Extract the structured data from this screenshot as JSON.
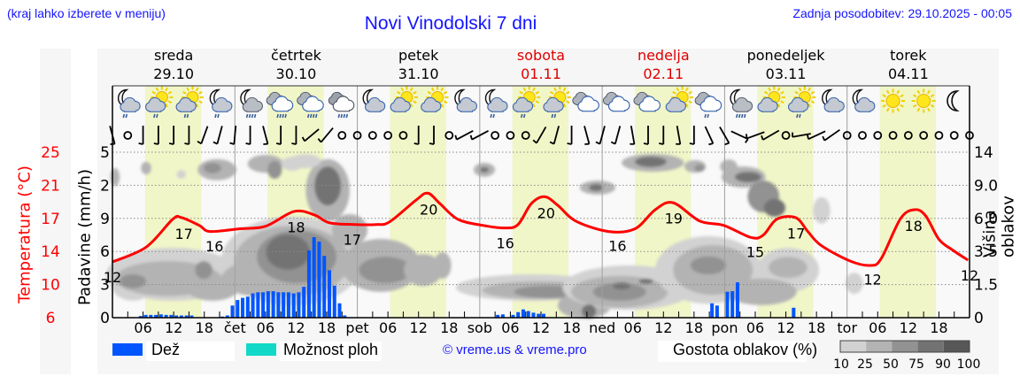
{
  "header": {
    "location_hint": "(kraj lahko izberete v meniju)",
    "title": "Novi Vinodolski 7 dni",
    "updated": "Zadnja posodobitev: 29.10.2025 - 00:05"
  },
  "days": [
    {
      "name": "sreda",
      "date": "29.10",
      "weekend": false
    },
    {
      "name": "četrtek",
      "date": "30.10",
      "weekend": false
    },
    {
      "name": "petek",
      "date": "31.10",
      "weekend": false
    },
    {
      "name": "sobota",
      "date": "01.11",
      "weekend": true
    },
    {
      "name": "nedelja",
      "date": "02.11",
      "weekend": true
    },
    {
      "name": "ponedeljek",
      "date": "03.11",
      "weekend": false
    },
    {
      "name": "torek",
      "date": "04.11",
      "weekend": false
    }
  ],
  "axes": {
    "temperature_title": "Temperatura (°C)",
    "rain_title": "Padavine (mm/h)",
    "cloud_height_title": "Višina oblakov (km)",
    "temperature_ticks": [
      "6",
      "10",
      "14",
      "17",
      "21",
      "25"
    ],
    "rain_ticks": [
      "0",
      "3",
      "6",
      "9",
      "2",
      "5"
    ],
    "cloud_height_ticks": [
      "0",
      "1.5",
      "3.5",
      "6.0",
      "9.0",
      "14"
    ],
    "hour_labels": [
      "06",
      "12",
      "18"
    ],
    "day_abbrev": [
      "",
      "čet",
      "pet",
      "sob",
      "ned",
      "pon",
      "tor"
    ]
  },
  "legend": {
    "rain_label": "Dež",
    "showers_label": "Možnost ploh",
    "copyright": "© vreme.us & vreme.pro",
    "cloud_density_label": "Gostota oblakov (%)",
    "cloud_density_scale": [
      "10",
      "25",
      "50",
      "75",
      "90",
      "100"
    ],
    "cloud_density_colors": [
      "#d2d2d2",
      "#b3b3b3",
      "#929292",
      "#737373",
      "#575757"
    ]
  },
  "colors": {
    "link_blue": "#1414ff",
    "temperature": "#ff0000",
    "rain": "#0055ff",
    "showers": "#12d8c8",
    "weekend": "#e00000",
    "daylight": "#f1f6c8"
  },
  "chart_data": {
    "type": "line",
    "title": "Novi Vinodolski 7 dni",
    "xlabel": "",
    "ylabel": "Temperatura (°C) / Padavine (mm/h) / Višina oblakov (km)",
    "x_range_hours": [
      0,
      168
    ],
    "ylim_temperature": [
      6,
      25
    ],
    "daylight_hours": [
      6.4,
      17.4
    ],
    "grid": true,
    "temperature_series": {
      "name": "Temperatura (°C)",
      "points": [
        [
          0,
          12.4
        ],
        [
          6.6,
          14.1
        ],
        [
          11.8,
          17.3
        ],
        [
          13.5,
          17.5
        ],
        [
          17,
          16.6
        ],
        [
          19.1,
          15.9
        ],
        [
          24.8,
          16.2
        ],
        [
          30,
          16.5
        ],
        [
          35.6,
          18.2
        ],
        [
          39.6,
          17.8
        ],
        [
          42.5,
          16.9
        ],
        [
          47.4,
          16.7
        ],
        [
          51.7,
          16.7
        ],
        [
          54.3,
          17.0
        ],
        [
          59.5,
          19.5
        ],
        [
          61.8,
          20.3
        ],
        [
          64.2,
          19.1
        ],
        [
          67.7,
          17.3
        ],
        [
          72.6,
          16.6
        ],
        [
          76.9,
          16.3
        ],
        [
          79.5,
          16.7
        ],
        [
          82.1,
          19.1
        ],
        [
          84.7,
          19.9
        ],
        [
          87.3,
          18.9
        ],
        [
          90.8,
          17.1
        ],
        [
          97.2,
          15.9
        ],
        [
          102.4,
          16.2
        ],
        [
          106.4,
          18.4
        ],
        [
          109.9,
          19.2
        ],
        [
          115.1,
          17.1
        ],
        [
          119.8,
          16.6
        ],
        [
          125.2,
          15.2
        ],
        [
          127.6,
          15.5
        ],
        [
          130.2,
          17.3
        ],
        [
          133.9,
          17.5
        ],
        [
          136.3,
          15.9
        ],
        [
          138.9,
          14.3
        ],
        [
          144.6,
          12.5
        ],
        [
          148.6,
          12.0
        ],
        [
          150.7,
          12.8
        ],
        [
          154.5,
          17.4
        ],
        [
          157.3,
          18.4
        ],
        [
          159.4,
          17.7
        ],
        [
          162,
          15.0
        ],
        [
          164.6,
          13.8
        ],
        [
          167.7,
          12.6
        ]
      ]
    },
    "temperature_labels": [
      [
        0,
        "12"
      ],
      [
        14,
        "17"
      ],
      [
        20,
        "16"
      ],
      [
        36,
        "18"
      ],
      [
        47,
        "17"
      ],
      [
        62,
        "20"
      ],
      [
        77,
        "16"
      ],
      [
        85,
        "20"
      ],
      [
        99,
        "16"
      ],
      [
        110,
        "19"
      ],
      [
        126,
        "15"
      ],
      [
        134,
        "17"
      ],
      [
        149,
        "12"
      ],
      [
        157,
        "18"
      ],
      [
        168,
        "12"
      ]
    ],
    "rain_series": {
      "name": "Dež (mm/h)",
      "hourly": [
        [
          5,
          0.15
        ],
        [
          6,
          0.25
        ],
        [
          7,
          0.25
        ],
        [
          8,
          0.25
        ],
        [
          9,
          0.3
        ],
        [
          10,
          0.25
        ],
        [
          11,
          0.25
        ],
        [
          12,
          0.2
        ],
        [
          13,
          0.2
        ],
        [
          14,
          0.2
        ],
        [
          15,
          0.2
        ],
        [
          21,
          0.1
        ],
        [
          22,
          0.2
        ],
        [
          23,
          1.1
        ],
        [
          24,
          1.6
        ],
        [
          25,
          1.8
        ],
        [
          26,
          1.9
        ],
        [
          27,
          2.2
        ],
        [
          28,
          2.3
        ],
        [
          29,
          2.3
        ],
        [
          30,
          2.4
        ],
        [
          31,
          2.4
        ],
        [
          32,
          2.3
        ],
        [
          33,
          2.3
        ],
        [
          34,
          2.3
        ],
        [
          35,
          2.2
        ],
        [
          36,
          2.3
        ],
        [
          37,
          2.8
        ],
        [
          38,
          6.1
        ],
        [
          39,
          7.3
        ],
        [
          40,
          6.9
        ],
        [
          41,
          5.6
        ],
        [
          42,
          4.3
        ],
        [
          43,
          2.9
        ],
        [
          44,
          1.3
        ],
        [
          45,
          0.2
        ],
        [
          75,
          0.25
        ],
        [
          76,
          0.3
        ],
        [
          78,
          0.25
        ],
        [
          79,
          0.5
        ],
        [
          80,
          0.75
        ],
        [
          81,
          0.6
        ],
        [
          82,
          0.45
        ],
        [
          83,
          0.35
        ],
        [
          84,
          0.35
        ],
        [
          117,
          1.3
        ],
        [
          118,
          1.1
        ],
        [
          120,
          2.35
        ],
        [
          121,
          2.4
        ],
        [
          122,
          3.2
        ],
        [
          133,
          0.9
        ]
      ]
    },
    "showers_series": {
      "name": "Možnost ploh",
      "hourly": []
    },
    "weather_icons": [
      "night-cloud-rain-light",
      "sun-cloud-rain-light",
      "sun-cloud-rain-light",
      "night-cloud-rain-light",
      "night-cloud-rain-heavy",
      "cloud-rain-heavy",
      "cloud-rain-heavy",
      "overcast-rain-heavy",
      "night-cloud",
      "sun-cloud",
      "sun-cloud",
      "night-cloud",
      "night-cloud-rain-light",
      "sun-cloud-rain-light",
      "sun-cloud-rain-light",
      "cloudy",
      "cloudy",
      "cloudy",
      "sun-cloud",
      "cloud-rain-light",
      "night-cloud-rain-heavy",
      "sun-cloud",
      "sun-cloud-rain-light",
      "night-cloud",
      "night-cloud",
      "sun",
      "sun",
      "moon"
    ],
    "wind_every_3h": [
      -15,
      "calm",
      0,
      0,
      0,
      0,
      20,
      15,
      5,
      0,
      -15,
      0,
      0,
      50,
      40,
      "calm",
      "calm",
      "calm",
      "calm",
      "calm",
      0,
      0,
      "calm",
      62,
      62,
      "calm",
      "calm",
      "calm",
      30,
      15,
      0,
      -15,
      15,
      15,
      -10,
      0,
      0,
      -10,
      0,
      -25,
      -30,
      -65,
      70,
      60,
      "calm",
      80,
      65,
      55,
      "calm",
      "calm",
      "calm",
      "calm",
      "calm",
      "calm",
      "calm",
      "calm",
      "calm"
    ],
    "cloud_density_blobs": [
      [
        11.8,
        1.31,
        13.0,
        0.8,
        1
      ],
      [
        4.0,
        1.04,
        4.3,
        0.53,
        1
      ],
      [
        10.9,
        1.18,
        10.4,
        0.53,
        2
      ],
      [
        19.6,
        0.91,
        5.2,
        0.4,
        2
      ],
      [
        4.0,
        1.1,
        2.6,
        0.21,
        3
      ],
      [
        17.9,
        1.44,
        1.7,
        0.27,
        3
      ],
      [
        6.6,
        4.52,
        1.0,
        0.19,
        2
      ],
      [
        20.5,
        4.47,
        3.8,
        0.32,
        2
      ],
      [
        19.6,
        4.52,
        1.7,
        0.16,
        3
      ],
      [
        13.5,
        4.33,
        0.9,
        0.13,
        1
      ],
      [
        0.5,
        4.25,
        0.9,
        0.27,
        2
      ],
      [
        35.2,
        1.71,
        13.9,
        1.34,
        1
      ],
      [
        35.2,
        1.71,
        11.3,
        1.07,
        2
      ],
      [
        28.3,
        1.18,
        6.9,
        0.53,
        2
      ],
      [
        36.1,
        1.84,
        7.8,
        0.8,
        3
      ],
      [
        34.4,
        1.98,
        4.3,
        0.53,
        4
      ],
      [
        42.2,
        3.85,
        4.3,
        0.94,
        2
      ],
      [
        42.2,
        3.98,
        2.6,
        0.59,
        4
      ],
      [
        30.0,
        4.65,
        3.5,
        0.27,
        2
      ],
      [
        35.2,
        4.65,
        2.1,
        0.21,
        1
      ],
      [
        37.8,
        4.73,
        3.1,
        0.21,
        1
      ],
      [
        31.8,
        4.47,
        1.4,
        0.27,
        3
      ],
      [
        46.5,
        2.65,
        3.5,
        0.48,
        2
      ],
      [
        52.6,
        1.58,
        7.8,
        0.8,
        2
      ],
      [
        53.5,
        1.44,
        5.2,
        0.4,
        3
      ],
      [
        60.9,
        1.44,
        3.8,
        0.48,
        2
      ],
      [
        64.7,
        1.58,
        1.7,
        0.4,
        2
      ],
      [
        72.9,
        4.47,
        2.1,
        0.21,
        2
      ],
      [
        72.9,
        4.47,
        0.9,
        0.08,
        4
      ],
      [
        82.1,
        0.91,
        14.8,
        0.4,
        1
      ],
      [
        83.8,
        0.83,
        11.3,
        0.27,
        2
      ],
      [
        85.6,
        0.78,
        6.9,
        0.19,
        3
      ],
      [
        92.5,
        0.37,
        5.2,
        0.4,
        2
      ],
      [
        95.1,
        3.93,
        3.5,
        0.21,
        2
      ],
      [
        94.8,
        3.93,
        1.4,
        0.11,
        4
      ],
      [
        101.2,
        0.91,
        13.0,
        0.67,
        1
      ],
      [
        99.4,
        0.78,
        9.5,
        0.48,
        2
      ],
      [
        99.4,
        0.78,
        5.2,
        0.27,
        3
      ],
      [
        99.8,
        0.96,
        1.7,
        0.11,
        4
      ],
      [
        104.6,
        1.1,
        1.4,
        0.08,
        4
      ],
      [
        93.4,
        0.19,
        1.4,
        0.21,
        4
      ],
      [
        116.8,
        1.44,
        10.4,
        1.02,
        1
      ],
      [
        117.7,
        1.44,
        7.8,
        0.75,
        2
      ],
      [
        116.8,
        1.58,
        3.5,
        0.27,
        3
      ],
      [
        105.9,
        4.68,
        6.1,
        0.27,
        2
      ],
      [
        105.5,
        4.71,
        3.1,
        0.16,
        4
      ],
      [
        114.2,
        4.57,
        2.1,
        0.19,
        2
      ],
      [
        115.1,
        4.52,
        1.0,
        0.11,
        3
      ],
      [
        123.7,
        4.25,
        4.3,
        0.32,
        2
      ],
      [
        124.6,
        4.25,
        2.6,
        0.16,
        4
      ],
      [
        127.6,
        3.66,
        3.1,
        0.48,
        3
      ],
      [
        129.8,
        3.32,
        2.1,
        0.27,
        4
      ],
      [
        120.8,
        4.57,
        1.7,
        0.21,
        2
      ],
      [
        132.4,
        1.44,
        6.1,
        0.67,
        1
      ],
      [
        132.4,
        1.52,
        3.8,
        0.32,
        2
      ],
      [
        139.0,
        3.24,
        1.7,
        0.4,
        1
      ],
      [
        127.2,
        0.78,
        6.9,
        0.4,
        2
      ],
      [
        145.4,
        1.04,
        1.7,
        0.32,
        1
      ]
    ]
  }
}
